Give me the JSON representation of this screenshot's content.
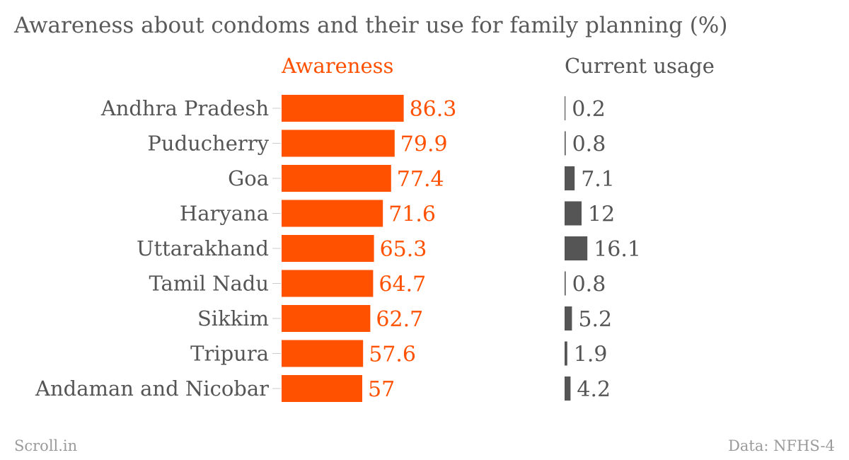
{
  "chart_data": {
    "type": "bar",
    "title": "Awareness about condoms and their use for family planning (%)",
    "categories": [
      "Andhra Pradesh",
      "Puducherry",
      "Goa",
      "Haryana",
      "Uttarakhand",
      "Tamil Nadu",
      "Sikkim",
      "Tripura",
      "Andaman and Nicobar"
    ],
    "series": [
      {
        "name": "Awareness",
        "values": [
          86.3,
          79.9,
          77.4,
          71.6,
          65.3,
          64.7,
          62.7,
          57.6,
          57
        ],
        "color": "#ff5100"
      },
      {
        "name": "Current usage",
        "values": [
          0.2,
          0.8,
          7.1,
          12,
          16.1,
          0.8,
          5.2,
          1.9,
          4.2
        ],
        "color": "#555555"
      }
    ],
    "value_labels": [
      [
        "86.3",
        "79.9",
        "77.4",
        "71.6",
        "65.3",
        "64.7",
        "62.7",
        "57.6",
        "57"
      ],
      [
        "0.2",
        "0.8",
        "7.1",
        "12",
        "16.1",
        "0.8",
        "5.2",
        "1.9",
        "4.2"
      ]
    ],
    "grid": false,
    "legend": "panel-headers"
  },
  "footer": {
    "source": "Scroll.in",
    "credit": "Data: NFHS-4"
  }
}
